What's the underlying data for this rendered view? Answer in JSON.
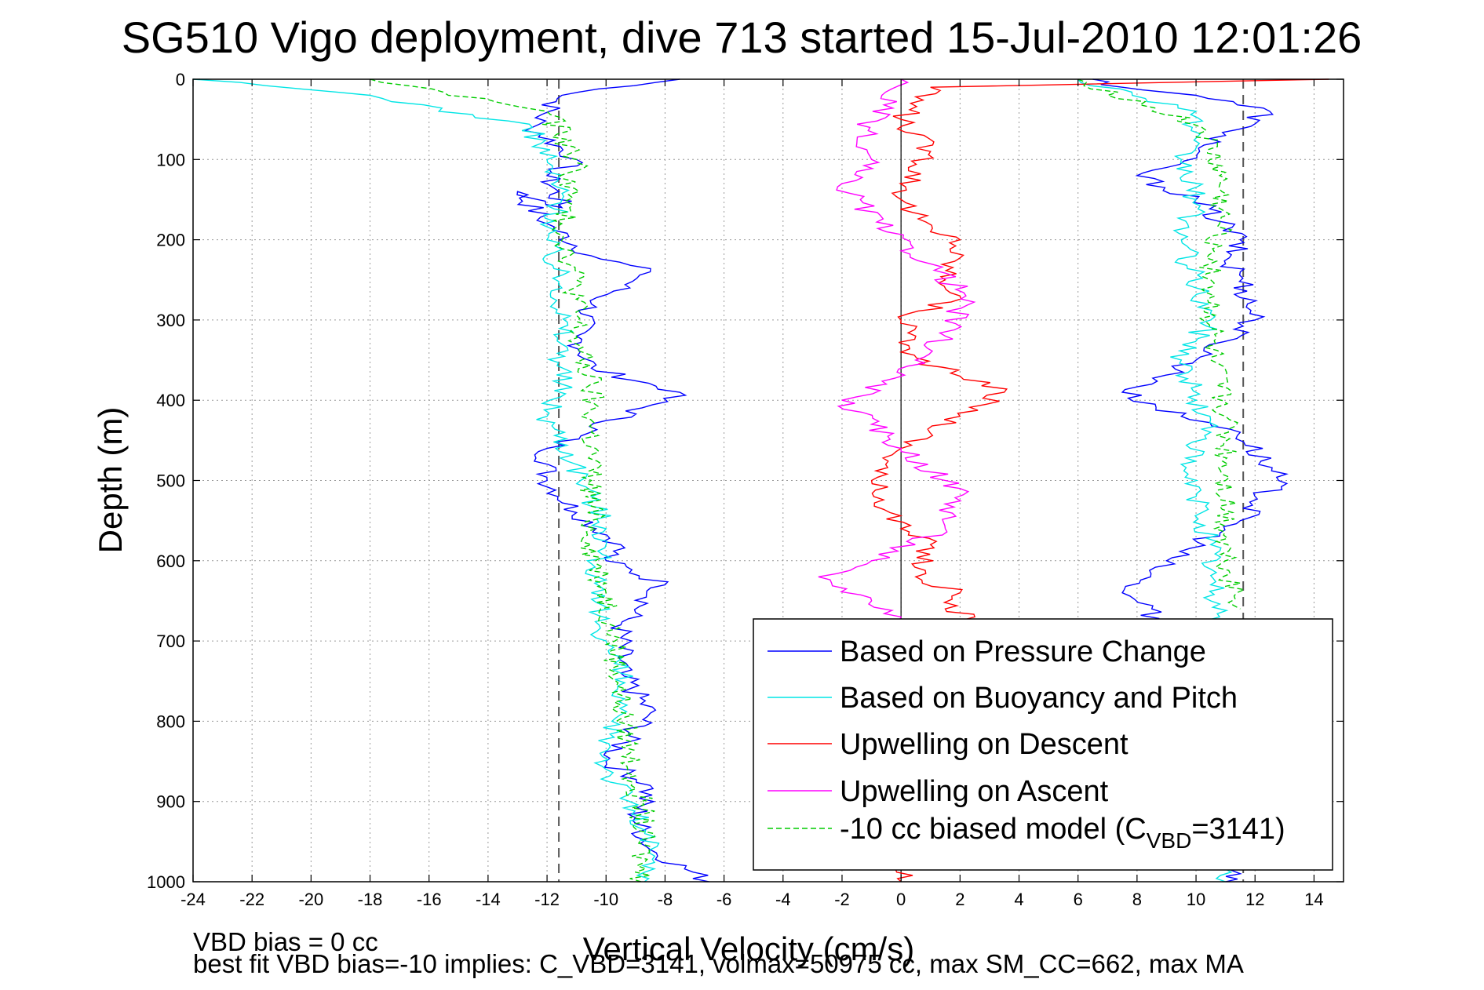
{
  "chart_data": {
    "type": "line",
    "title": "SG510 Vigo deployment, dive 713 started 15-Jul-2010 12:01:26",
    "xlabel": "Vertical Velocity (cm/s)",
    "ylabel": "Depth (m)",
    "xlim": [
      -24,
      15
    ],
    "ylim": [
      1000,
      0
    ],
    "y_reversed": true,
    "grid": true,
    "legend_position": "lower-right",
    "x_ticks": [
      -24,
      -22,
      -20,
      -18,
      -16,
      -14,
      -12,
      -10,
      -8,
      -6,
      -4,
      -2,
      0,
      2,
      4,
      6,
      8,
      10,
      12,
      14
    ],
    "y_ticks": [
      0,
      100,
      200,
      300,
      400,
      500,
      600,
      700,
      800,
      900,
      1000
    ],
    "reference_lines": [
      {
        "x": -11.6,
        "style": "dashed",
        "color": "#555555"
      },
      {
        "x": 11.6,
        "style": "dashed",
        "color": "#555555"
      },
      {
        "x": 0,
        "style": "solid",
        "color": "#000000"
      }
    ],
    "series": [
      {
        "name": "Based on Pressure Change",
        "color": "#0000ff",
        "style": "solid",
        "descent": {
          "x": [
            -7.5,
            -11.5,
            -12.5,
            -11,
            -12,
            -11.5,
            -13,
            -12,
            -10.5,
            -8.5,
            -10.5,
            -11,
            -10.5,
            -7.5,
            -12,
            -12,
            -11,
            -9.5,
            -10,
            -8,
            -9.5,
            -9.5,
            -8.5,
            -10,
            -8.5,
            -9,
            -8.5,
            -6.5
          ],
          "y": [
            0,
            20,
            60,
            100,
            120,
            160,
            140,
            180,
            220,
            240,
            280,
            320,
            360,
            390,
            460,
            500,
            540,
            580,
            600,
            630,
            680,
            740,
            790,
            850,
            880,
            920,
            960,
            1000
          ]
        },
        "ascent": {
          "x": [
            6.5,
            7.5,
            10,
            12.5,
            11,
            9,
            8,
            10,
            11.5,
            11,
            11.5,
            12,
            10,
            8.5,
            7.5,
            9.5,
            11.5,
            12.8,
            11.5,
            9,
            7.5,
            8.5,
            11.5,
            11
          ],
          "y": [
            0,
            10,
            20,
            40,
            70,
            110,
            120,
            150,
            200,
            230,
            240,
            300,
            350,
            380,
            390,
            420,
            440,
            500,
            550,
            600,
            640,
            660,
            990,
            1000
          ]
        }
      },
      {
        "name": "Based on Buoyancy and Pitch",
        "color": "#00e5e5",
        "style": "solid",
        "descent": {
          "x": [
            -24,
            -18,
            -12.5,
            -12,
            -11.5,
            -12,
            -11.5,
            -11.5,
            -11.5,
            -12,
            -11,
            -10.5,
            -10,
            -10.5,
            -10,
            -9.5,
            -9.8,
            -10,
            -9.2,
            -8.5,
            -8.7
          ],
          "y": [
            0,
            20,
            60,
            100,
            150,
            200,
            260,
            330,
            380,
            420,
            480,
            520,
            560,
            640,
            700,
            740,
            800,
            860,
            900,
            960,
            1000
          ]
        },
        "ascent": {
          "x": [
            6,
            10,
            9.5,
            10,
            9.5,
            10,
            10.5,
            9.5,
            10,
            10.5,
            9.5,
            10,
            10.5,
            10.5,
            10.8,
            11
          ],
          "y": [
            0,
            40,
            100,
            150,
            200,
            260,
            300,
            350,
            400,
            440,
            480,
            520,
            580,
            630,
            670,
            1000
          ]
        }
      },
      {
        "name": "Upwelling on Descent",
        "color": "#ff0000",
        "style": "solid",
        "descent": {
          "x": [
            14.5,
            1,
            0,
            1,
            0,
            1,
            2,
            1.5,
            2,
            0,
            0.5,
            0,
            2,
            3.5,
            2,
            0,
            -1,
            0,
            1,
            0.5,
            2,
            1.5,
            2.5,
            0
          ],
          "y": [
            0,
            10,
            50,
            90,
            150,
            190,
            200,
            250,
            270,
            300,
            320,
            340,
            370,
            390,
            420,
            460,
            500,
            560,
            580,
            620,
            640,
            660,
            670,
            1000
          ]
        }
      },
      {
        "name": "Upwelling on Ascent",
        "color": "#ff00ff",
        "style": "solid",
        "descent": {
          "x": [
            0,
            -1.5,
            -1,
            -2,
            -0.5,
            1,
            2.2,
            1.5,
            0.5,
            -0.5,
            -2,
            -1,
            0,
            1.5,
            2,
            1.5,
            -1,
            -2.8,
            -1,
            0,
            0.5
          ],
          "y": [
            0,
            80,
            100,
            130,
            190,
            230,
            270,
            320,
            350,
            380,
            400,
            430,
            460,
            500,
            510,
            560,
            600,
            620,
            650,
            670,
            700
          ]
        }
      },
      {
        "name": "-10 cc biased model (C",
        "name_subscript": "VBD",
        "name_suffix": "=3141)",
        "color": "#00cc00",
        "style": "dashed",
        "descent": {
          "x": [
            -18,
            -12,
            -11,
            -11.5,
            -11,
            -11,
            -10.5,
            -10.5,
            -10.5,
            -10.5,
            -10,
            -9.7,
            -9.5,
            -9.2,
            -8.8,
            -8.8
          ],
          "y": [
            0,
            40,
            100,
            180,
            250,
            330,
            380,
            440,
            500,
            580,
            640,
            700,
            780,
            840,
            900,
            1000
          ]
        },
        "ascent": {
          "x": [
            6,
            10.2,
            10.8,
            10.8,
            10.5,
            10.5,
            11,
            11,
            11,
            11.5
          ],
          "y": [
            0,
            60,
            120,
            180,
            250,
            350,
            420,
            500,
            600,
            660
          ]
        }
      }
    ]
  },
  "footnote": {
    "line1": "VBD bias = 0 cc",
    "line2": "best fit VBD bias=-10 implies: C_VBD=3141, volmax=50975 cc, max SM_CC=662, max MA"
  }
}
